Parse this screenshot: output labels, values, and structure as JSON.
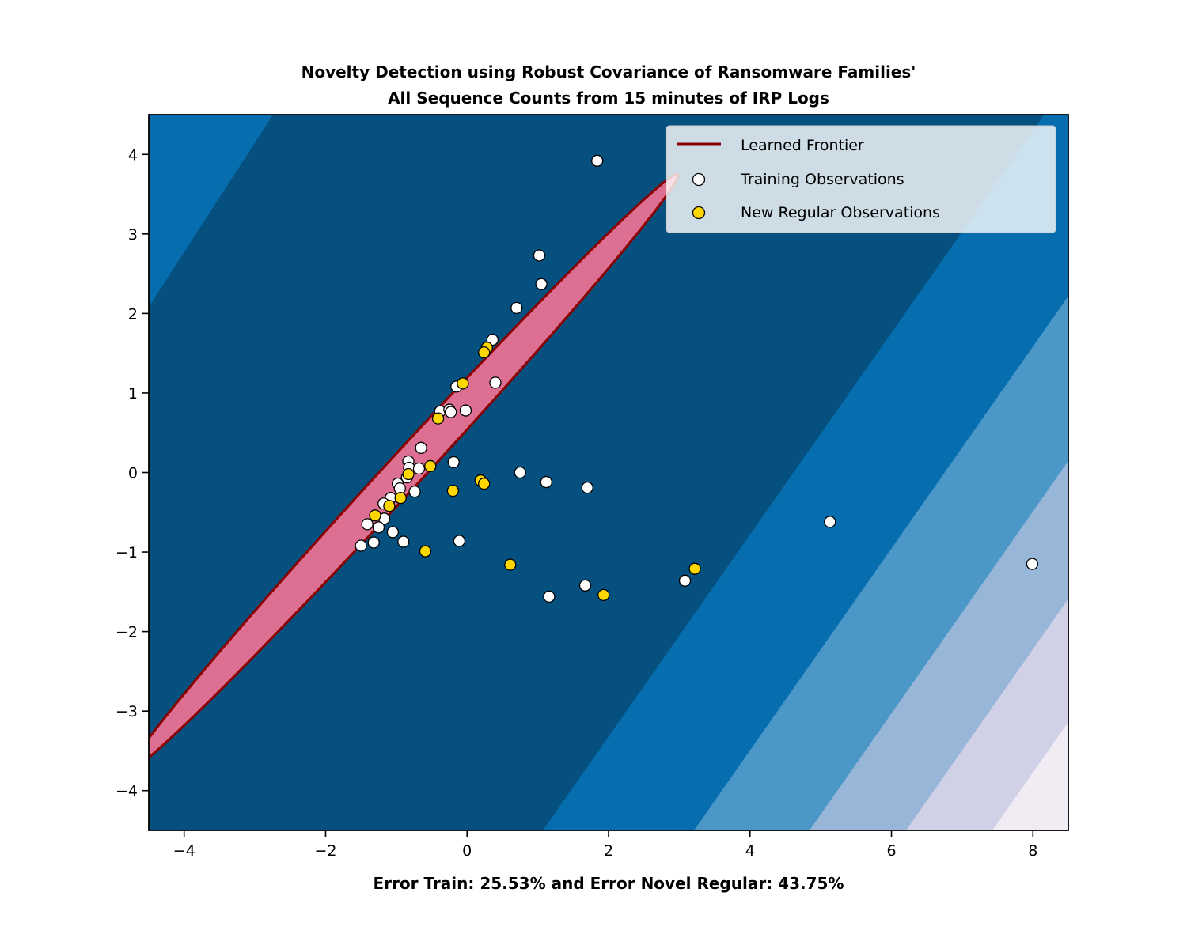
{
  "chart_data": {
    "type": "scatter",
    "title": "Novelty Detection using Robust Covariance of Ransomware Families'",
    "title_line2": "All Sequence Counts from 15 minutes of IRP Logs",
    "xlabel": "Error Train: 25.53% and Error Novel Regular: 43.75%",
    "ylabel": "",
    "xlim": [
      -4.5,
      8.5
    ],
    "ylim": [
      -4.5,
      4.5
    ],
    "xticks": [
      -4,
      -2,
      0,
      2,
      4,
      6,
      8
    ],
    "xtick_labels": [
      "−4",
      "−2",
      "0",
      "2",
      "4",
      "6",
      "8"
    ],
    "yticks": [
      4,
      3,
      2,
      1,
      0,
      -1,
      -2,
      -3,
      -4
    ],
    "ytick_labels": [
      "4",
      "3",
      "2",
      "1",
      "0",
      "−1",
      "−2",
      "−3",
      "−4"
    ],
    "grid": false,
    "legend_position": "top-right",
    "background_levels": [
      "#05507e",
      "#066eaf",
      "#4b98c8",
      "#97b6d8",
      "#d0d1e6",
      "#f1ebf4"
    ],
    "frontier": {
      "name": "Learned Frontier",
      "color": "#8b0000",
      "fill": "#dd7092",
      "center": [
        -0.89,
        0.01
      ],
      "semi_major": 5.38,
      "semi_minor": 0.24,
      "angle_deg": 44
    },
    "series": [
      {
        "name": "Training Observations",
        "color": "#ffffff",
        "points": [
          [
            1.84,
            3.92
          ],
          [
            1.02,
            2.73
          ],
          [
            1.05,
            2.37
          ],
          [
            0.7,
            2.07
          ],
          [
            0.36,
            1.67
          ],
          [
            0.4,
            1.13
          ],
          [
            -0.15,
            1.08
          ],
          [
            -0.38,
            0.77
          ],
          [
            -0.25,
            0.79
          ],
          [
            -0.23,
            0.76
          ],
          [
            -0.02,
            0.78
          ],
          [
            -0.65,
            0.31
          ],
          [
            -0.83,
            0.14
          ],
          [
            -0.19,
            0.13
          ],
          [
            -0.82,
            0.06
          ],
          [
            -0.68,
            0.05
          ],
          [
            -0.85,
            -0.06
          ],
          [
            -0.98,
            -0.14
          ],
          [
            -0.95,
            -0.2
          ],
          [
            -0.74,
            -0.24
          ],
          [
            -1.08,
            -0.32
          ],
          [
            -1.18,
            -0.39
          ],
          [
            -1.17,
            -0.58
          ],
          [
            -1.41,
            -0.65
          ],
          [
            -1.25,
            -0.69
          ],
          [
            -1.05,
            -0.75
          ],
          [
            -1.32,
            -0.88
          ],
          [
            -1.5,
            -0.92
          ],
          [
            -0.9,
            -0.87
          ],
          [
            -0.11,
            -0.86
          ],
          [
            0.75,
            0.0
          ],
          [
            1.12,
            -0.12
          ],
          [
            1.7,
            -0.19
          ],
          [
            1.16,
            -1.56
          ],
          [
            1.67,
            -1.42
          ],
          [
            3.08,
            -1.36
          ],
          [
            5.13,
            -0.62
          ],
          [
            7.99,
            -1.15
          ]
        ]
      },
      {
        "name": "New Regular Observations",
        "color": "#ffd700",
        "points": [
          [
            0.28,
            1.57
          ],
          [
            0.24,
            1.51
          ],
          [
            -0.06,
            1.12
          ],
          [
            -0.41,
            0.68
          ],
          [
            -0.52,
            0.08
          ],
          [
            -0.83,
            -0.02
          ],
          [
            -0.94,
            -0.32
          ],
          [
            -1.1,
            -0.42
          ],
          [
            -1.3,
            -0.54
          ],
          [
            -0.2,
            -0.23
          ],
          [
            0.19,
            -0.1
          ],
          [
            0.24,
            -0.14
          ],
          [
            -0.59,
            -0.99
          ],
          [
            0.61,
            -1.16
          ],
          [
            1.93,
            -1.54
          ],
          [
            3.22,
            -1.21
          ]
        ]
      }
    ]
  }
}
